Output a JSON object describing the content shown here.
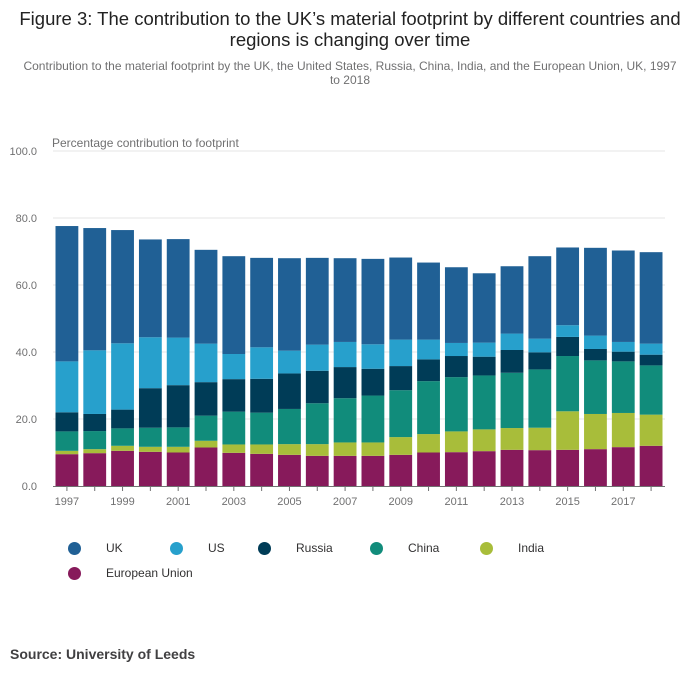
{
  "title": "Figure 3: The contribution to the UK’s material footprint by different countries and regions is changing over time",
  "subtitle": "Contribution to the material footprint by the UK, the United States, Russia, China, India, and the European Union, UK, 1997 to 2018",
  "source": "Source: University of Leeds",
  "chart_data": {
    "type": "bar",
    "stacked": true,
    "title": "Figure 3: The contribution to the UK’s material footprint by different countries and regions is changing over time",
    "ylabel": "Percentage contribution to footprint",
    "xlabel": "",
    "ylim": [
      0,
      100
    ],
    "yticks": [
      "0.0",
      "20.0",
      "40.0",
      "60.0",
      "80.0",
      "100.0"
    ],
    "categories": [
      "1997",
      "1998",
      "1999",
      "2000",
      "2001",
      "2002",
      "2003",
      "2004",
      "2005",
      "2006",
      "2007",
      "2008",
      "2009",
      "2010",
      "2011",
      "2012",
      "2013",
      "2014",
      "2015",
      "2016",
      "2017",
      "2018"
    ],
    "xtick_labels": [
      "1997",
      "1999",
      "2001",
      "2003",
      "2005",
      "2007",
      "2009",
      "2011",
      "2013",
      "2015",
      "2017"
    ],
    "legend_position": "bottom",
    "series": [
      {
        "name": "European Union",
        "color": "#871a5b",
        "values": [
          9.5,
          9.8,
          10.5,
          10.2,
          10.0,
          11.5,
          9.9,
          9.6,
          9.3,
          9.0,
          9.0,
          9.0,
          9.3,
          10.0,
          10.1,
          10.4,
          10.8,
          10.7,
          10.8,
          11.0,
          11.6,
          12.0
        ]
      },
      {
        "name": "India",
        "color": "#a8bd3a",
        "values": [
          1.0,
          1.2,
          1.5,
          1.5,
          1.7,
          2.0,
          2.5,
          2.8,
          3.2,
          3.5,
          4.0,
          4.0,
          5.3,
          5.5,
          6.2,
          6.5,
          6.5,
          6.7,
          11.5,
          10.5,
          10.2,
          9.3
        ]
      },
      {
        "name": "China",
        "color": "#118c7b",
        "values": [
          5.8,
          5.4,
          5.2,
          5.7,
          5.8,
          7.5,
          9.8,
          9.5,
          10.5,
          12.2,
          13.2,
          14.0,
          14.0,
          15.8,
          16.2,
          16.1,
          16.5,
          17.4,
          16.5,
          16.0,
          15.4,
          14.7
        ]
      },
      {
        "name": "Russia",
        "color": "#003c57",
        "values": [
          5.7,
          5.1,
          5.6,
          11.8,
          12.6,
          10.0,
          9.7,
          10.1,
          10.6,
          9.7,
          9.3,
          8.0,
          7.2,
          6.5,
          6.3,
          5.6,
          6.8,
          5.1,
          5.7,
          3.4,
          2.9,
          3.2
        ]
      },
      {
        "name": "US",
        "color": "#27a0cc",
        "values": [
          15.2,
          19.0,
          19.8,
          15.2,
          14.2,
          11.5,
          7.5,
          9.4,
          6.8,
          7.8,
          7.5,
          7.3,
          7.9,
          5.9,
          3.9,
          4.2,
          4.9,
          4.1,
          3.5,
          4.0,
          2.9,
          3.3
        ]
      },
      {
        "name": "UK",
        "color": "#206095",
        "values": [
          40.4,
          36.5,
          33.8,
          29.2,
          29.4,
          28.0,
          29.2,
          26.7,
          27.6,
          25.9,
          25.0,
          25.5,
          24.5,
          23.0,
          22.6,
          20.7,
          20.1,
          24.6,
          23.2,
          26.2,
          27.3,
          27.3
        ]
      }
    ]
  },
  "legend_items": [
    {
      "label": "UK",
      "color": "#206095"
    },
    {
      "label": "US",
      "color": "#27a0cc"
    },
    {
      "label": "Russia",
      "color": "#003c57"
    },
    {
      "label": "China",
      "color": "#118c7b"
    },
    {
      "label": "India",
      "color": "#a8bd3a"
    },
    {
      "label": "European Union",
      "color": "#871a5b"
    }
  ]
}
